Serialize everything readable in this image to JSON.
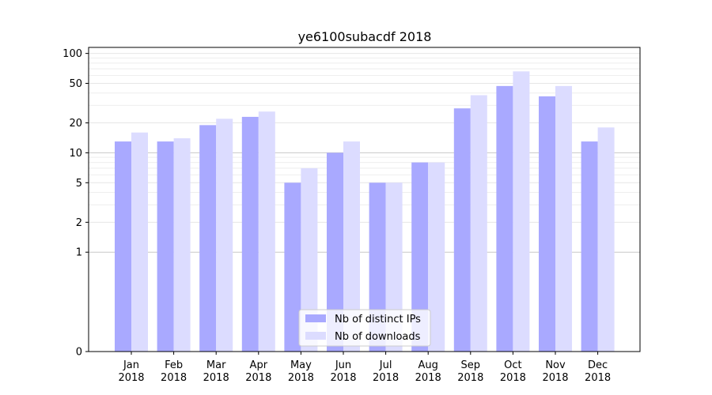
{
  "chart_data": {
    "type": "bar",
    "title": "ye6100subacdf 2018",
    "categories": [
      "Jan\n2018",
      "Feb\n2018",
      "Mar\n2018",
      "Apr\n2018",
      "May\n2018",
      "Jun\n2018",
      "Jul\n2018",
      "Aug\n2018",
      "Sep\n2018",
      "Oct\n2018",
      "Nov\n2018",
      "Dec\n2018"
    ],
    "series": [
      {
        "name": "Nb of distinct IPs",
        "color": "#a9a9ff",
        "values": [
          13,
          13,
          19,
          23,
          5,
          10,
          5,
          8,
          28,
          47,
          37,
          13
        ]
      },
      {
        "name": "Nb of downloads",
        "color": "#dcdcff",
        "values": [
          16,
          14,
          22,
          26,
          7,
          13,
          5,
          8,
          38,
          66,
          47,
          18
        ]
      }
    ],
    "yscale": "symlog",
    "yticks": [
      0,
      1,
      2,
      5,
      10,
      20,
      50,
      100
    ],
    "ylim": [
      0,
      115
    ],
    "xlabel": "",
    "ylabel": "",
    "grid": true,
    "legend_position": "bottom-center"
  }
}
